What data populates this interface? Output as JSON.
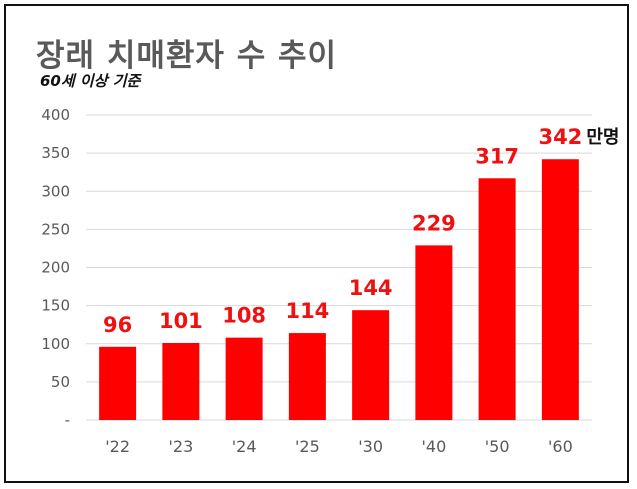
{
  "header": {
    "title": "장래 치매환자 수 추이",
    "subtitle": "60세 이상 기준"
  },
  "chart_data": {
    "type": "bar",
    "title": "장래 치매환자 수 추이",
    "subtitle": "60세 이상 기준",
    "categories": [
      "'22",
      "'23",
      "'24",
      "'25",
      "'30",
      "'40",
      "'50",
      "'60"
    ],
    "values": [
      96,
      101,
      108,
      114,
      144,
      229,
      317,
      342
    ],
    "value_labels": [
      "96",
      "101",
      "108",
      "114",
      "144",
      "229",
      "317",
      "342"
    ],
    "unit_label": "만명",
    "yticks": [
      0,
      50,
      100,
      150,
      200,
      250,
      300,
      350,
      400
    ],
    "ytick_labels": [
      "-",
      "50",
      "100",
      "150",
      "200",
      "250",
      "300",
      "350",
      "400"
    ],
    "ylim": [
      0,
      400
    ],
    "xlabel": "",
    "ylabel": "",
    "grid": true,
    "colors": {
      "bar": "#ff0000",
      "data_label": "#ee1111",
      "grid": "#d9d9d9",
      "axis_text": "#595959"
    }
  }
}
